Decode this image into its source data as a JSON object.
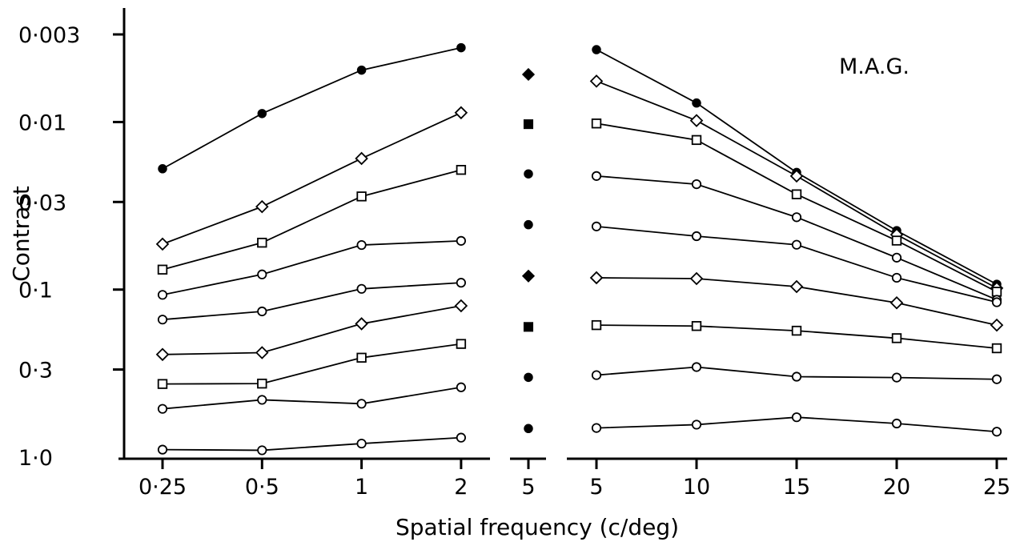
{
  "chart_data": {
    "type": "line",
    "label": "M.A.G.",
    "xlabel": "Spatial frequency (c/deg)",
    "ylabel": "Contrast",
    "y_scale": "log",
    "y_inverted": true,
    "ylim": [
      0.003,
      1.0
    ],
    "yticks": [
      {
        "value": 0.003,
        "label": "0·003"
      },
      {
        "value": 0.01,
        "label": "0·01"
      },
      {
        "value": 0.03,
        "label": "0·03"
      },
      {
        "value": 0.1,
        "label": "0·1"
      },
      {
        "value": 0.3,
        "label": "0·3"
      },
      {
        "value": 1.0,
        "label": "1·0"
      }
    ],
    "left_panel": {
      "x_scale": "log",
      "x": [
        0.25,
        0.5,
        1,
        2
      ],
      "xtick_labels": [
        "0·25",
        "0·5",
        "1",
        "2"
      ],
      "series": [
        {
          "marker": "filled-circle",
          "values": [
            0.019,
            0.0089,
            0.0049,
            0.0036
          ]
        },
        {
          "marker": "open-diamond",
          "values": [
            0.0535,
            0.032,
            0.0165,
            0.0088
          ]
        },
        {
          "marker": "open-square",
          "values": [
            0.076,
            0.0525,
            0.0278,
            0.0193
          ]
        },
        {
          "marker": "open-circle",
          "values": [
            0.1075,
            0.0812,
            0.0542,
            0.0512
          ]
        },
        {
          "marker": "open-circle",
          "values": [
            0.151,
            0.135,
            0.099,
            0.091
          ]
        },
        {
          "marker": "open-diamond",
          "values": [
            0.244,
            0.238,
            0.16,
            0.125
          ]
        },
        {
          "marker": "open-square",
          "values": [
            0.366,
            0.364,
            0.255,
            0.211
          ]
        },
        {
          "marker": "open-circle",
          "values": [
            0.515,
            0.455,
            0.48,
            0.383
          ]
        },
        {
          "marker": "open-circle",
          "values": [
            0.902,
            0.91,
            0.83,
            0.765
          ]
        }
      ]
    },
    "middle_panel": {
      "x": [
        5
      ],
      "xtick_labels": [
        "5"
      ],
      "points": [
        {
          "marker": "filled-diamond",
          "value": 0.0052
        },
        {
          "marker": "filled-square",
          "value": 0.0103
        },
        {
          "marker": "filled-circle",
          "value": 0.0204
        },
        {
          "marker": "filled-circle",
          "value": 0.041
        },
        {
          "marker": "filled-diamond",
          "value": 0.083
        },
        {
          "marker": "filled-square",
          "value": 0.167
        },
        {
          "marker": "filled-circle",
          "value": 0.334
        },
        {
          "marker": "filled-circle",
          "value": 0.675
        }
      ]
    },
    "right_panel": {
      "x_scale": "linear",
      "x": [
        5,
        10,
        15,
        20,
        25
      ],
      "xtick_labels": [
        "5",
        "10",
        "15",
        "20",
        "25"
      ],
      "series": [
        {
          "marker": "filled-circle",
          "values": [
            0.0037,
            0.0077,
            0.02,
            0.0445,
            0.093
          ]
        },
        {
          "marker": "open-diamond",
          "values": [
            0.0057,
            0.0098,
            0.021,
            0.047,
            0.098
          ]
        },
        {
          "marker": "open-square",
          "values": [
            0.0102,
            0.0128,
            0.027,
            0.051,
            0.103
          ]
        },
        {
          "marker": "open-circle",
          "values": [
            0.021,
            0.0235,
            0.037,
            0.0645,
            0.115
          ]
        },
        {
          "marker": "open-circle",
          "values": [
            0.042,
            0.048,
            0.054,
            0.085,
            0.119
          ]
        },
        {
          "marker": "open-diamond",
          "values": [
            0.085,
            0.086,
            0.096,
            0.12,
            0.163
          ]
        },
        {
          "marker": "open-square",
          "values": [
            0.163,
            0.165,
            0.176,
            0.195,
            0.224
          ]
        },
        {
          "marker": "open-circle",
          "values": [
            0.324,
            0.29,
            0.331,
            0.335,
            0.343
          ]
        },
        {
          "marker": "open-circle",
          "values": [
            0.67,
            0.64,
            0.578,
            0.63,
            0.705
          ]
        }
      ]
    }
  }
}
